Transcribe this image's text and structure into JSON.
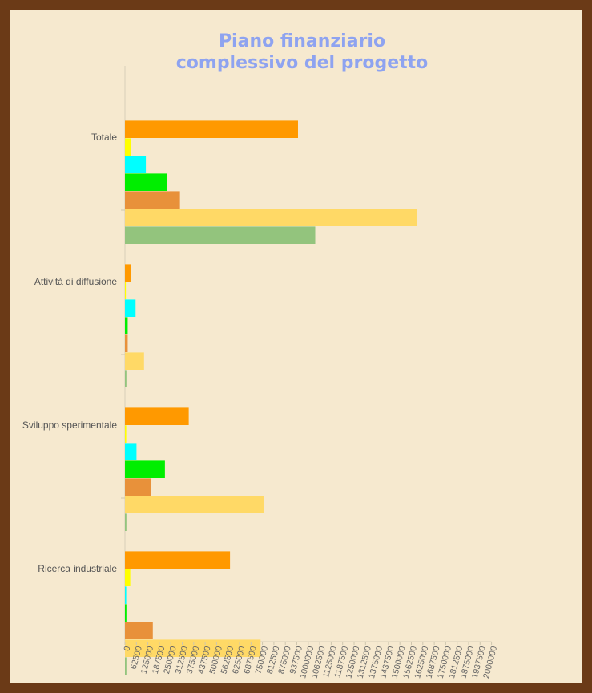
{
  "chart_data": {
    "type": "bar",
    "orientation": "horizontal",
    "title": "Piano finanziario complessivo del progetto",
    "categories": [
      "Totale",
      "Attività di diffusione",
      "Sviluppo sperimentale",
      "Ricerca industriale"
    ],
    "series": [
      {
        "color": "#ff9900",
        "values": [
          944000,
          33000,
          348000,
          573000
        ]
      },
      {
        "color": "#ffff00",
        "values": [
          31000,
          5000,
          7000,
          29000
        ]
      },
      {
        "color": "#00ffff",
        "values": [
          114000,
          58000,
          63000,
          7000
        ]
      },
      {
        "color": "#00ee00",
        "values": [
          228000,
          15000,
          218000,
          8000
        ]
      },
      {
        "color": "#e8913a",
        "values": [
          300000,
          15000,
          144000,
          152000
        ]
      },
      {
        "color": "#ffd966",
        "values": [
          1593000,
          104000,
          756000,
          740000
        ]
      },
      {
        "color": "#93c47d",
        "values": [
          1038000,
          8000,
          8000,
          8000
        ]
      }
    ],
    "xlim": [
      0,
      2000000
    ],
    "tick_step": 62500,
    "tick_labels": [
      "0",
      "62500",
      "125000",
      "187500",
      "250000",
      "312500",
      "375000",
      "437500",
      "500000",
      "562500",
      "625000",
      "687500",
      "750000",
      "812500",
      "875000",
      "937500",
      "1000000",
      "1062500",
      "1125000",
      "1187500",
      "1250000",
      "1312500",
      "1375000",
      "1437500",
      "1500000",
      "1562500",
      "1625000",
      "1687500",
      "1750000",
      "1812500",
      "1875000",
      "1937500",
      "2000000"
    ],
    "grid": false,
    "legend": "none"
  }
}
